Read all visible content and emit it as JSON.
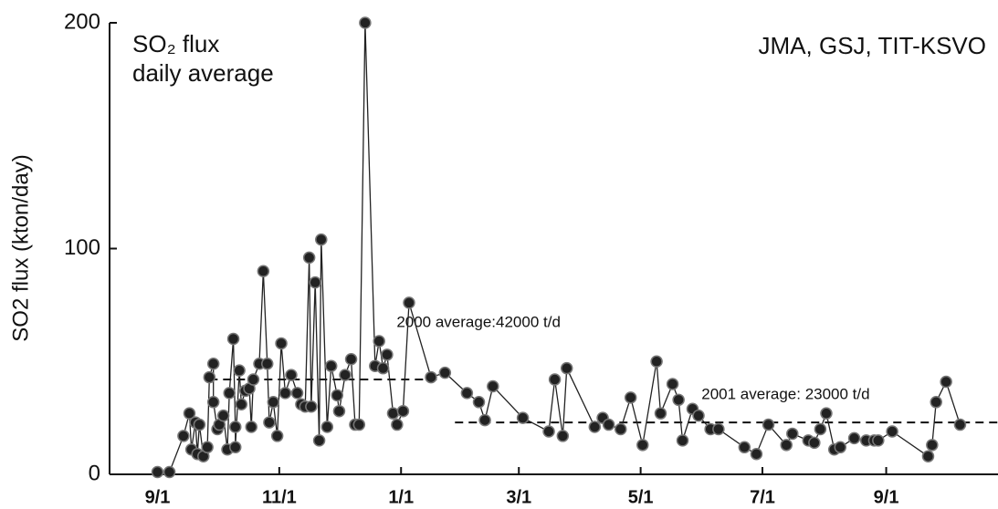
{
  "chart_data": {
    "type": "line",
    "title": "SO₂ flux",
    "subtitle": "daily average",
    "source": "JMA, GSJ, TIT-KSVO",
    "ylabel": "SO2 flux (kton/day)",
    "xlim": [
      -24,
      421
    ],
    "ylim": [
      0,
      200
    ],
    "yticks": [
      0,
      100,
      200
    ],
    "xticks": [
      {
        "value": 0,
        "label": "9/1"
      },
      {
        "value": 61,
        "label": "11/1"
      },
      {
        "value": 122,
        "label": "1/1"
      },
      {
        "value": 181,
        "label": "3/1"
      },
      {
        "value": 242,
        "label": "5/1"
      },
      {
        "value": 303,
        "label": "7/1"
      },
      {
        "value": 365,
        "label": "9/1"
      }
    ],
    "series": [
      {
        "color": "#222222",
        "x": [
          0,
          6,
          13,
          16,
          17,
          19,
          20,
          21,
          23,
          25,
          26,
          28,
          28,
          30,
          31,
          33,
          35,
          36,
          38,
          39,
          39,
          41,
          42,
          44,
          46,
          47,
          48,
          51,
          53,
          55,
          56,
          58,
          60,
          62,
          64,
          67,
          70,
          72,
          74,
          76,
          77,
          79,
          81,
          82,
          85,
          87,
          90,
          91,
          94,
          97,
          99,
          101,
          104,
          109,
          111,
          113,
          115,
          118,
          120,
          123,
          126,
          137,
          144,
          155,
          161,
          164,
          168,
          183,
          196,
          199,
          203,
          205,
          219,
          223,
          226,
          232,
          237,
          243,
          250,
          252,
          258,
          261,
          263,
          268,
          271,
          277,
          281,
          294,
          300,
          306,
          315,
          318,
          326,
          329,
          332,
          335,
          339,
          342,
          349,
          355,
          359,
          361,
          368,
          386,
          388,
          390,
          395,
          402
        ],
        "values": [
          1,
          1,
          17,
          27,
          11,
          23,
          9,
          22,
          8,
          12,
          43,
          49,
          32,
          20,
          22,
          26,
          11,
          36,
          60,
          21,
          12,
          46,
          31,
          37,
          38,
          21,
          42,
          49,
          90,
          49,
          23,
          32,
          17,
          58,
          36,
          44,
          36,
          31,
          30,
          96,
          30,
          85,
          15,
          104,
          21,
          48,
          35,
          28,
          44,
          51,
          22,
          22,
          200,
          48,
          59,
          47,
          53,
          27,
          22,
          28,
          76,
          43,
          45,
          36,
          32,
          24,
          39,
          25,
          19,
          42,
          17,
          47,
          21,
          25,
          22,
          20,
          34,
          13,
          50,
          27,
          40,
          33,
          15,
          29,
          26,
          20,
          20,
          12,
          9,
          22,
          13,
          18,
          15,
          14,
          20,
          27,
          11,
          12,
          16,
          15,
          15,
          15,
          19,
          8,
          13,
          32,
          41,
          22
        ]
      }
    ],
    "annotations": [
      {
        "label": "2000 average:42000 t/d",
        "value": 42,
        "x": [
          26,
          142
        ]
      },
      {
        "label": "2001 average: 23000 t/d",
        "value": 23,
        "x": [
          149,
          421
        ]
      }
    ]
  }
}
